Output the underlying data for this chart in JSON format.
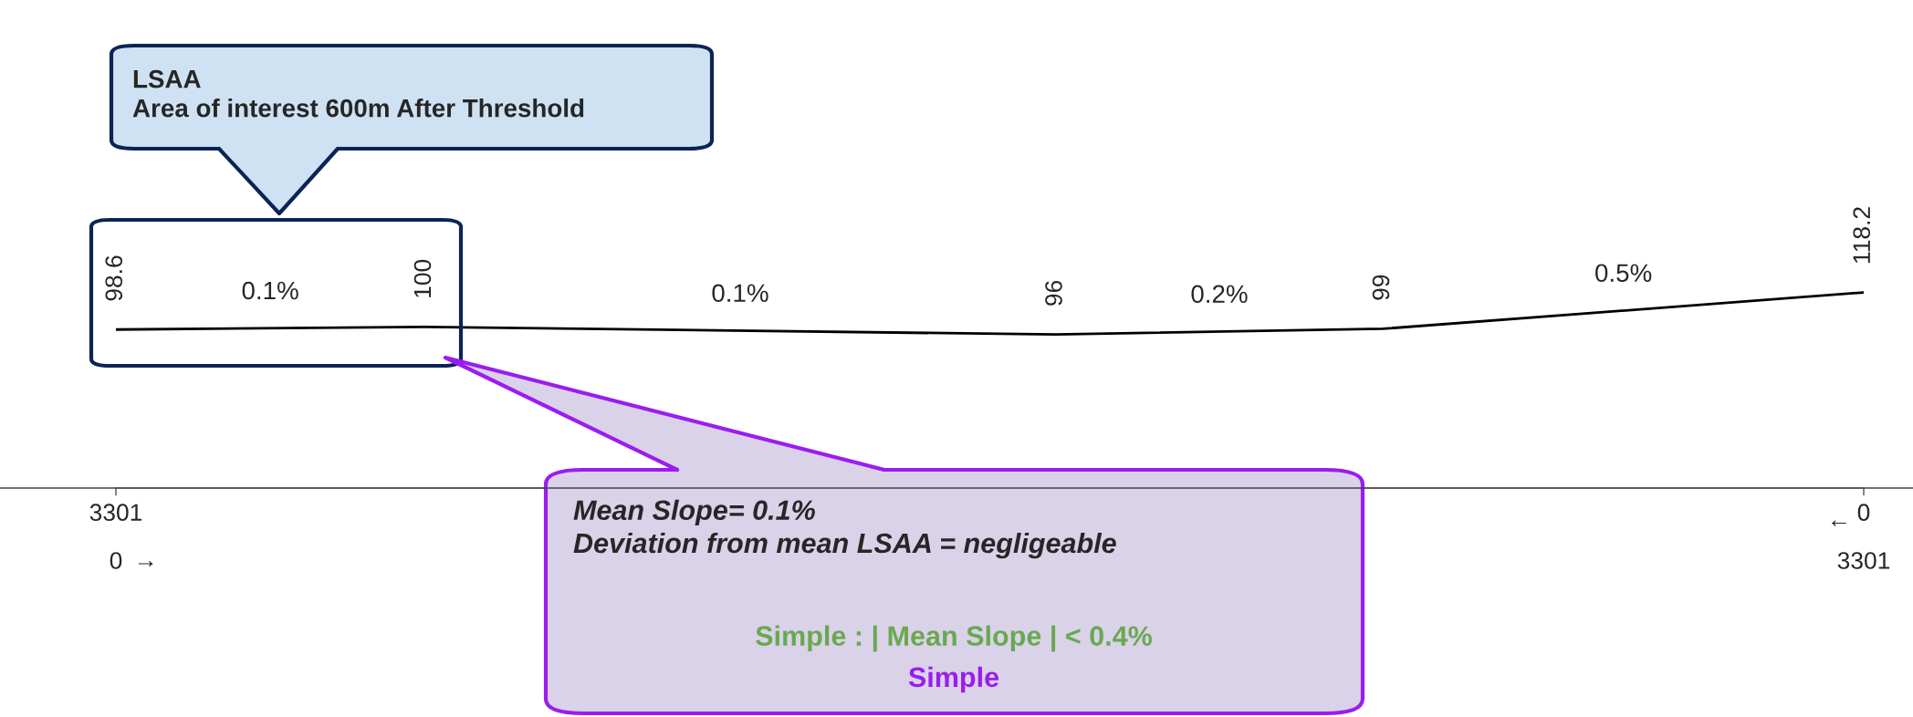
{
  "chart_data": {
    "type": "line",
    "x": [
      0,
      583,
      1775,
      2393,
      3301
    ],
    "values": [
      98.6,
      100,
      96,
      99,
      118.2
    ],
    "value_labels": [
      "98.6",
      "100",
      "96",
      "99",
      "118.2"
    ],
    "color": "#000000",
    "xlim": [
      0,
      3301
    ],
    "xticks": [
      0,
      3301
    ],
    "x2lim": [
      3301,
      0
    ],
    "x2ticks": [
      3301,
      0
    ],
    "tick_labels": "x",
    "grid": false,
    "legend": false,
    "marker": "none",
    "line_style": "solid",
    "annotations": [
      "LSAA\nArea of interest 600m After Threshold",
      "Mean Slope= 0.1%\nDeviation from mean LSAA = negligeable",
      "Simple : | Mean Slope | < 0.4%",
      "Simple",
      "0.1%",
      "0.1%",
      "0.2%",
      "0.5%",
      "→",
      "←"
    ]
  }
}
